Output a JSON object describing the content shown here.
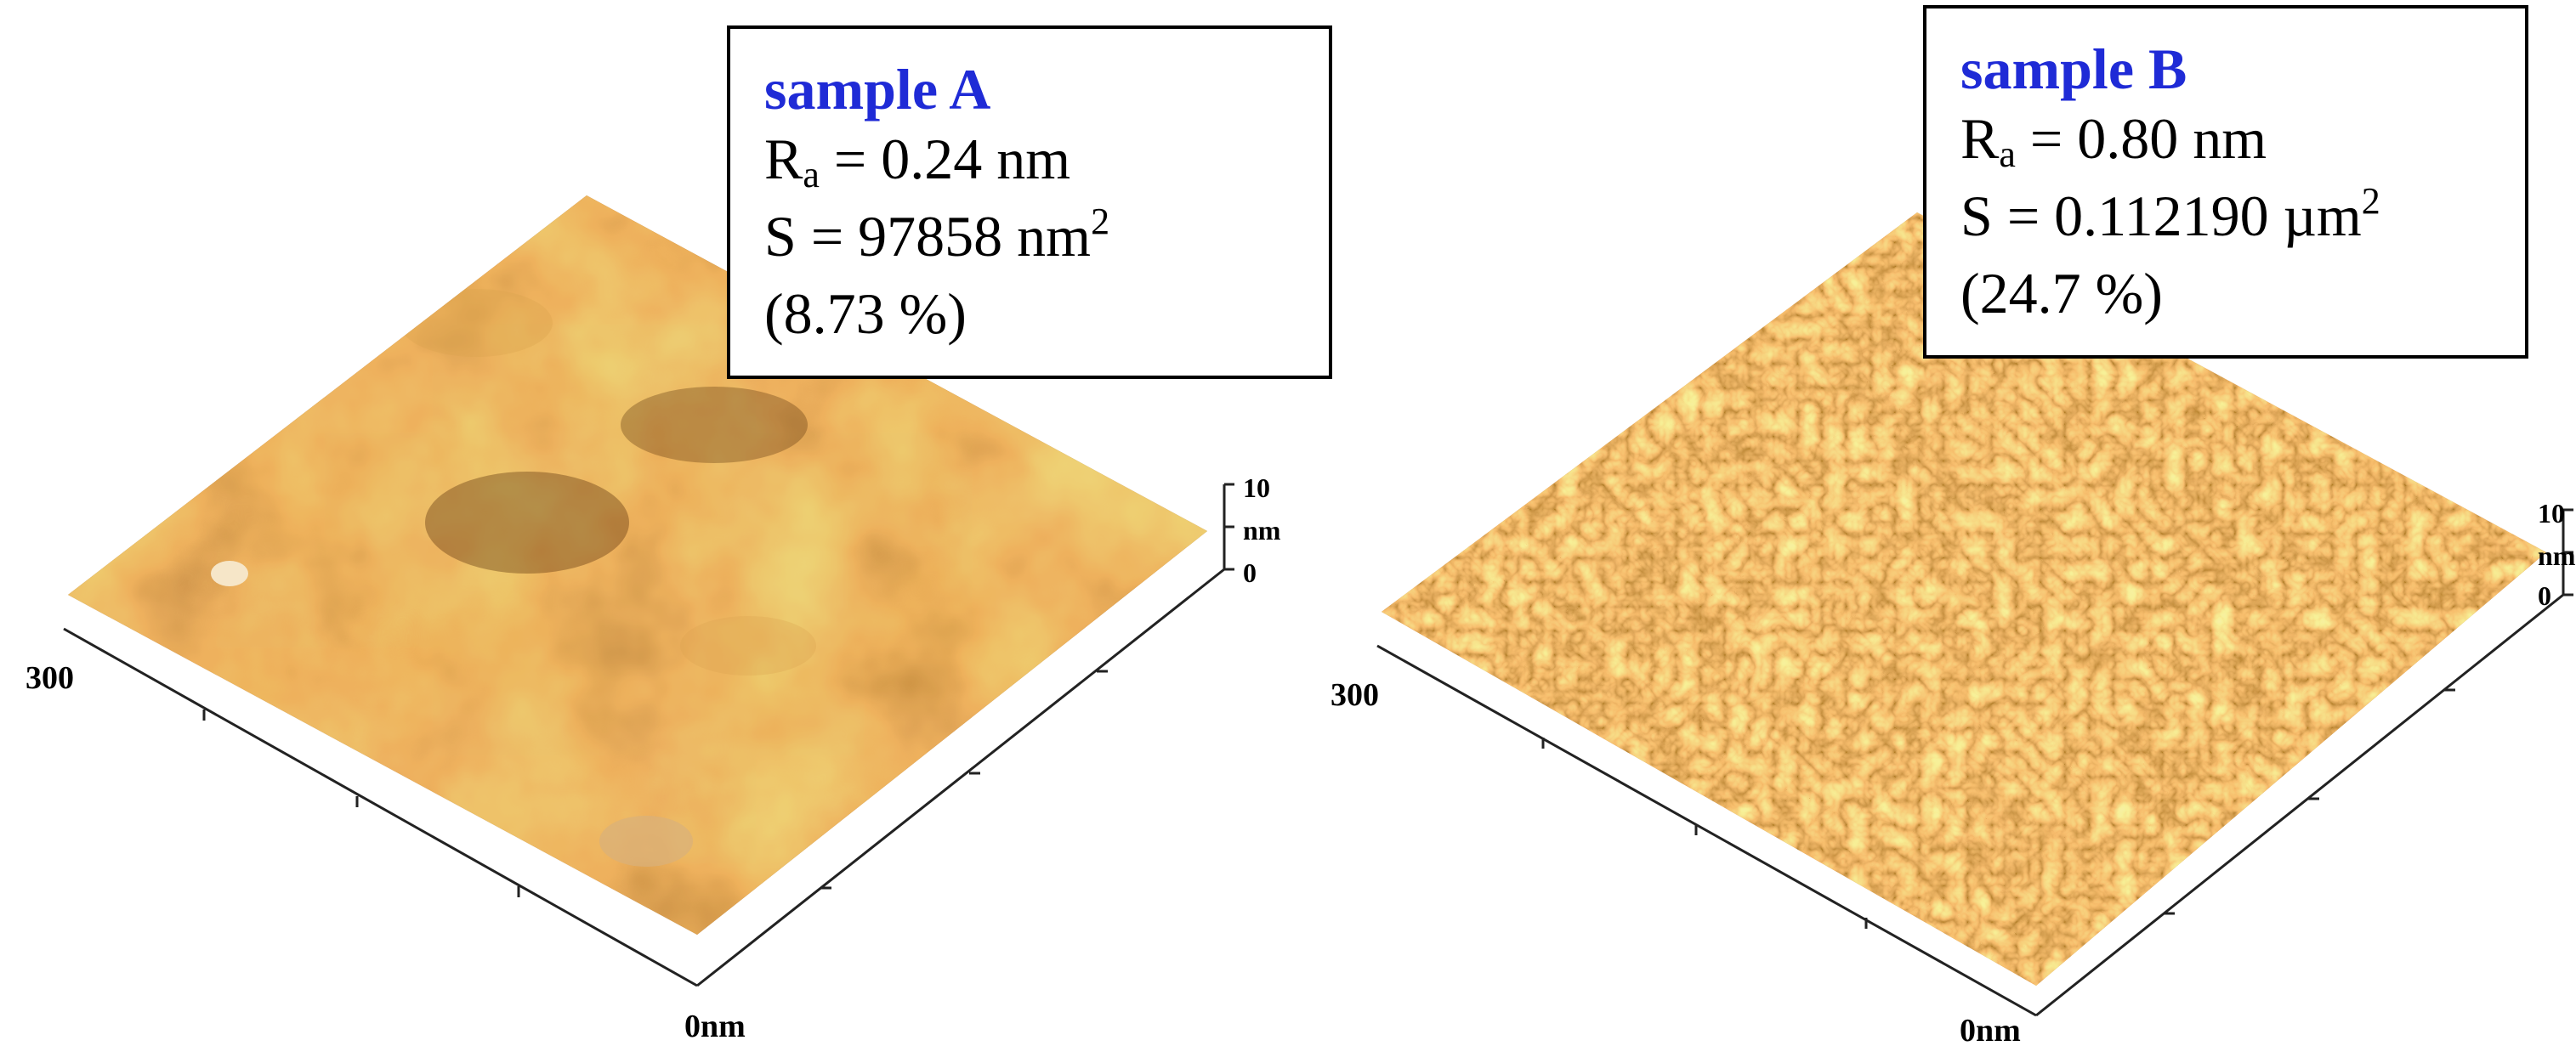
{
  "panels": [
    {
      "id": "A",
      "title": "sample A",
      "ra_symbol": "R",
      "ra_sub": "a",
      "ra_value": " = 0.24 nm",
      "s_text": "S = 97858 nm",
      "s_sup": "2",
      "percent": "(8.73 %)",
      "axis": {
        "y_max_label": "300",
        "origin_label": "0nm",
        "z_top": "10",
        "z_unit": "nm",
        "z_zero": "0"
      },
      "colors": {
        "base": "#8a4d10",
        "light": "#d9a24e",
        "dark": "#4a2304"
      }
    },
    {
      "id": "B",
      "title": "sample B",
      "ra_symbol": "R",
      "ra_sub": "a",
      "ra_value": " = 0.80 nm",
      "s_text": "S = 0.112190 µm",
      "s_sup": "2",
      "percent": "(24.7 %)",
      "axis": {
        "y_max_label": "300",
        "origin_label": "0nm",
        "z_top": "10",
        "z_unit": "nm",
        "z_zero": "0"
      },
      "colors": {
        "base": "#b06a1c",
        "light": "#f0c07a",
        "dark": "#5a2e08"
      }
    }
  ],
  "box_title_color": "#1f2bd6"
}
